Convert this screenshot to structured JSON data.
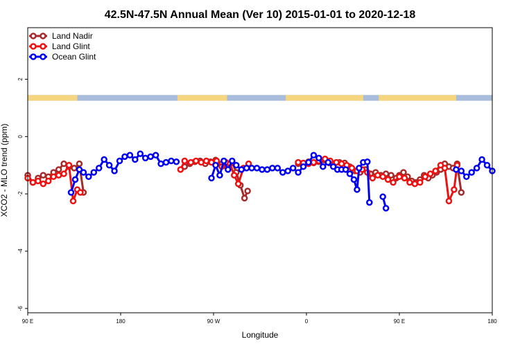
{
  "chart_data": {
    "type": "line",
    "title": "42.5N-47.5N Annual Mean (Ver 10)   2015-01-01 to 2020-12-18",
    "xlabel": "Longitude",
    "ylabel": "XCO2 - MLO trend (ppm)",
    "x_ticks": [
      "90 E",
      "180",
      "90 W",
      "0",
      "90 E",
      "180"
    ],
    "x_tick_values": [
      -270,
      -180,
      -90,
      0,
      90,
      180
    ],
    "xlim": [
      -270,
      180
    ],
    "y_ticks": [
      "-6",
      "-4",
      "-2",
      "0",
      "2"
    ],
    "y_tick_values": [
      -6,
      -4,
      -2,
      0,
      2
    ],
    "ylim": [
      -6.15,
      3.8
    ],
    "grid": false,
    "legend_position": "top-left",
    "land_ocean_band": {
      "y_range": [
        1.25,
        1.45
      ],
      "land_color": "#f5d580",
      "ocean_color": "#a8bcdc",
      "land_segments": [
        [
          -270,
          -222
        ],
        [
          -125,
          -77
        ],
        [
          -20,
          55
        ],
        [
          70,
          145
        ]
      ]
    },
    "series": [
      {
        "name": "Land Nadir",
        "color": "#a52a2a",
        "segments": [
          [
            [
              -270,
              -1.35
            ],
            [
              -265,
              -1.6
            ],
            [
              -260,
              -1.45
            ],
            [
              -255,
              -1.35
            ],
            [
              -250,
              -1.4
            ],
            [
              -245,
              -1.25
            ],
            [
              -240,
              -1.15
            ],
            [
              -235,
              -0.95
            ],
            [
              -230,
              -1.05
            ],
            [
              -225,
              -1.1
            ],
            [
              -220,
              -0.95
            ],
            [
              -216,
              -1.95
            ]
          ],
          [
            [
              -118,
              -1.05
            ],
            [
              -113,
              -0.95
            ],
            [
              -108,
              -0.88
            ],
            [
              -103,
              -0.85
            ],
            [
              -98,
              -0.95
            ],
            [
              -93,
              -0.88
            ],
            [
              -88,
              -0.82
            ],
            [
              -82,
              -0.95
            ],
            [
              -77,
              -1.05
            ],
            [
              -72,
              -0.9
            ],
            [
              -68,
              -1.25
            ],
            [
              -64,
              -1.7
            ],
            [
              -60,
              -2.15
            ],
            [
              -57,
              -1.9
            ]
          ],
          [
            [
              -8,
              -0.95
            ],
            [
              -3,
              -0.95
            ],
            [
              2,
              -0.88
            ],
            [
              7,
              -0.92
            ],
            [
              12,
              -0.88
            ],
            [
              17,
              -0.82
            ],
            [
              22,
              -0.92
            ],
            [
              27,
              -0.95
            ],
            [
              32,
              -0.9
            ],
            [
              37,
              -0.92
            ],
            [
              42,
              -1.05
            ],
            [
              47,
              -1.2
            ],
            [
              52,
              -1.25
            ],
            [
              57,
              -1.15
            ],
            [
              62,
              -1.3
            ],
            [
              67,
              -1.25
            ],
            [
              72,
              -1.35
            ],
            [
              77,
              -1.3
            ],
            [
              82,
              -1.35
            ],
            [
              87,
              -1.45
            ],
            [
              90,
              -1.35
            ],
            [
              94,
              -1.25
            ],
            [
              98,
              -1.4
            ],
            [
              102,
              -1.55
            ],
            [
              106,
              -1.6
            ],
            [
              110,
              -1.5
            ],
            [
              114,
              -1.35
            ],
            [
              118,
              -1.45
            ],
            [
              122,
              -1.35
            ],
            [
              126,
              -1.25
            ],
            [
              130,
              -1.15
            ],
            [
              134,
              -0.95
            ],
            [
              138,
              -1.05
            ],
            [
              142,
              -1.1
            ],
            [
              146,
              -0.95
            ],
            [
              150,
              -1.95
            ]
          ]
        ]
      },
      {
        "name": "Land Glint",
        "color": "#ee1111",
        "segments": [
          [
            [
              -270,
              -1.45
            ],
            [
              -265,
              -1.6
            ],
            [
              -260,
              -1.55
            ],
            [
              -255,
              -1.65
            ],
            [
              -250,
              -1.55
            ],
            [
              -245,
              -1.4
            ],
            [
              -240,
              -1.35
            ],
            [
              -235,
              -1.3
            ],
            [
              -230,
              -1.0
            ],
            [
              -226,
              -2.25
            ],
            [
              -222,
              -1.85
            ],
            [
              -219,
              -1.95
            ]
          ],
          [
            [
              -122,
              -1.15
            ],
            [
              -118,
              -0.85
            ],
            [
              -112,
              -0.9
            ],
            [
              -107,
              -0.85
            ],
            [
              -102,
              -0.9
            ],
            [
              -97,
              -0.85
            ],
            [
              -92,
              -0.9
            ],
            [
              -87,
              -0.85
            ],
            [
              -82,
              -1.05
            ],
            [
              -78,
              -0.9
            ],
            [
              -74,
              -0.95
            ],
            [
              -70,
              -1.35
            ],
            [
              -66,
              -1.65
            ],
            [
              -61,
              -1.1
            ],
            [
              -56,
              -0.95
            ]
          ],
          [
            [
              -8,
              -0.9
            ],
            [
              -3,
              -0.92
            ],
            [
              2,
              -0.95
            ],
            [
              7,
              -0.9
            ],
            [
              12,
              -0.85
            ],
            [
              18,
              -0.78
            ],
            [
              23,
              -0.85
            ],
            [
              29,
              -0.9
            ],
            [
              34,
              -0.95
            ],
            [
              39,
              -1.0
            ],
            [
              44,
              -1.1
            ],
            [
              49,
              -1.2
            ],
            [
              54,
              -1.15
            ],
            [
              59,
              -1.25
            ],
            [
              64,
              -1.45
            ],
            [
              69,
              -1.35
            ],
            [
              74,
              -1.4
            ],
            [
              79,
              -1.5
            ],
            [
              84,
              -1.6
            ],
            [
              90,
              -1.4
            ],
            [
              95,
              -1.45
            ],
            [
              100,
              -1.6
            ],
            [
              105,
              -1.65
            ],
            [
              110,
              -1.6
            ],
            [
              115,
              -1.4
            ],
            [
              120,
              -1.3
            ],
            [
              125,
              -1.2
            ],
            [
              130,
              -1.0
            ],
            [
              134,
              -1.1
            ],
            [
              138,
              -2.25
            ],
            [
              143,
              -1.85
            ],
            [
              146,
              -1.0
            ]
          ]
        ]
      },
      {
        "name": "Ocean Glint",
        "color": "#0000ee",
        "segments": [
          [
            [
              -228,
              -1.95
            ],
            [
              -224,
              -1.5
            ],
            [
              -220,
              -1.15
            ],
            [
              -216,
              -1.25
            ],
            [
              -211,
              -1.4
            ],
            [
              -206,
              -1.25
            ],
            [
              -201,
              -1.1
            ],
            [
              -196,
              -0.8
            ],
            [
              -191,
              -1.0
            ],
            [
              -186,
              -1.2
            ],
            [
              -181,
              -0.85
            ],
            [
              -176,
              -0.7
            ],
            [
              -171,
              -0.65
            ],
            [
              -166,
              -0.8
            ],
            [
              -161,
              -0.6
            ],
            [
              -156,
              -0.75
            ],
            [
              -151,
              -0.7
            ],
            [
              -146,
              -0.65
            ],
            [
              -141,
              -0.95
            ],
            [
              -136,
              -0.9
            ],
            [
              -131,
              -0.85
            ],
            [
              -126,
              -0.88
            ]
          ],
          [
            [
              -92,
              -1.45
            ],
            [
              -88,
              -1.0
            ],
            [
              -84,
              -1.35
            ],
            [
              -80,
              -0.85
            ],
            [
              -76,
              -1.15
            ],
            [
              -72,
              -0.85
            ],
            [
              -68,
              -1.0
            ],
            [
              -63,
              -1.15
            ],
            [
              -58,
              -1.1
            ],
            [
              -53,
              -1.1
            ],
            [
              -48,
              -1.1
            ],
            [
              -43,
              -1.15
            ],
            [
              -38,
              -1.15
            ],
            [
              -33,
              -1.1
            ],
            [
              -28,
              -1.1
            ],
            [
              -23,
              -1.25
            ],
            [
              -18,
              -1.2
            ],
            [
              -13,
              -1.1
            ],
            [
              -8,
              -1.25
            ],
            [
              -3,
              -1.05
            ],
            [
              2,
              -0.9
            ],
            [
              7,
              -0.65
            ],
            [
              12,
              -0.75
            ],
            [
              16,
              -1.05
            ],
            [
              21,
              -0.9
            ],
            [
              26,
              -1.05
            ],
            [
              30,
              -1.15
            ],
            [
              34,
              -1.15
            ],
            [
              38,
              -1.15
            ],
            [
              42,
              -1.3
            ],
            [
              46,
              -1.5
            ],
            [
              49,
              -1.85
            ],
            [
              51,
              -1.1
            ],
            [
              55,
              -0.9
            ],
            [
              59,
              -0.88
            ],
            [
              61,
              -2.3
            ]
          ],
          [
            [
              74,
              -2.1
            ],
            [
              77,
              -2.5
            ]
          ],
          [
            [
              145,
              -1.15
            ],
            [
              150,
              -1.2
            ],
            [
              155,
              -1.4
            ],
            [
              160,
              -1.25
            ],
            [
              165,
              -1.1
            ],
            [
              170,
              -0.8
            ],
            [
              175,
              -1.0
            ],
            [
              180,
              -1.2
            ]
          ]
        ]
      }
    ]
  }
}
